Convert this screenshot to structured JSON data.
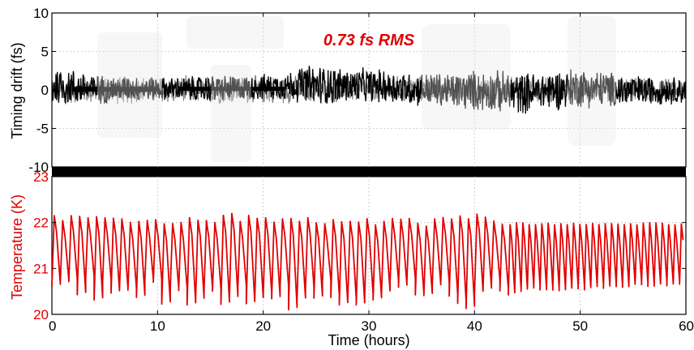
{
  "chart_data": [
    {
      "type": "line",
      "title": "",
      "annotation": "0.73 fs RMS",
      "annotation_color": "#e00000",
      "xlabel": "",
      "ylabel": "Timing drift (fs)",
      "xlim": [
        0,
        60
      ],
      "ylim": [
        -10,
        10
      ],
      "yticks": [
        "10",
        "5",
        "0",
        "-5",
        "-10"
      ],
      "yticks_values": [
        10,
        5,
        0,
        -5,
        -10
      ],
      "grid": true,
      "series": [
        {
          "color": "#000000",
          "note": "noisy timing signal, envelope (min/max) per ~2 h",
          "x": [
            0,
            2,
            4,
            6,
            8,
            10,
            12,
            14,
            16,
            18,
            20,
            22,
            24,
            26,
            28,
            30,
            32,
            34,
            36,
            38,
            40,
            42,
            44,
            46,
            48,
            50,
            52,
            54,
            56,
            58,
            60
          ],
          "ymin": [
            -2.5,
            -2.2,
            -2.0,
            -1.8,
            -1.5,
            -1.5,
            -1.5,
            -1.8,
            -1.8,
            -1.5,
            -1.5,
            -1.5,
            -2.0,
            -2.2,
            -2.0,
            -1.8,
            -2.0,
            -2.2,
            -2.5,
            -2.8,
            -3.0,
            -3.2,
            -3.5,
            -3.0,
            -2.8,
            -2.5,
            -2.5,
            -2.5,
            -2.2,
            -2.0,
            -2.0
          ],
          "ymax": [
            3.5,
            3.0,
            2.2,
            2.0,
            2.0,
            1.8,
            1.8,
            2.0,
            2.2,
            2.0,
            2.2,
            2.5,
            3.5,
            3.5,
            3.0,
            3.0,
            2.8,
            2.5,
            2.5,
            2.5,
            2.8,
            2.8,
            2.5,
            2.5,
            3.0,
            3.2,
            2.8,
            2.2,
            2.0,
            2.0,
            1.8
          ]
        },
        {
          "color": "#808080",
          "note": "gray trace partly behind black",
          "x": [
            0,
            10,
            20,
            30,
            40,
            50,
            60
          ],
          "ymin": [
            -2.0,
            -2.0,
            -2.0,
            -1.8,
            -1.8,
            -1.8,
            -1.5
          ],
          "ymax": [
            2.0,
            2.0,
            2.0,
            2.0,
            1.8,
            2.0,
            1.5
          ]
        }
      ]
    },
    {
      "type": "line",
      "title": "",
      "xlabel": "Time (hours)",
      "ylabel": "Temperature (K)",
      "ylabel_color": "#e00000",
      "xlim": [
        0,
        60
      ],
      "ylim": [
        20,
        23
      ],
      "xticks": [
        "0",
        "10",
        "20",
        "30",
        "40",
        "50",
        "60"
      ],
      "xticks_values": [
        0,
        10,
        20,
        30,
        40,
        50,
        60
      ],
      "yticks": [
        "23",
        "22",
        "21",
        "20"
      ],
      "yticks_values": [
        23,
        22,
        21,
        20
      ],
      "grid": true,
      "series": [
        {
          "color": "#e00000",
          "note": "sawtooth oscillation, period ~0.8 h until ~43 h, then ~0.6 h",
          "x": [
            0,
            5,
            10,
            15,
            20,
            25,
            30,
            35,
            40,
            43,
            45,
            50,
            55,
            60
          ],
          "ymin": [
            20.3,
            20.2,
            20.2,
            20.2,
            20.0,
            20.2,
            20.2,
            20.3,
            20.0,
            20.4,
            20.5,
            20.5,
            20.6,
            20.6
          ],
          "ymax": [
            22.2,
            22.2,
            22.1,
            22.2,
            22.2,
            22.1,
            22.1,
            22.1,
            22.3,
            22.0,
            22.0,
            22.0,
            22.0,
            22.0
          ]
        }
      ]
    }
  ]
}
